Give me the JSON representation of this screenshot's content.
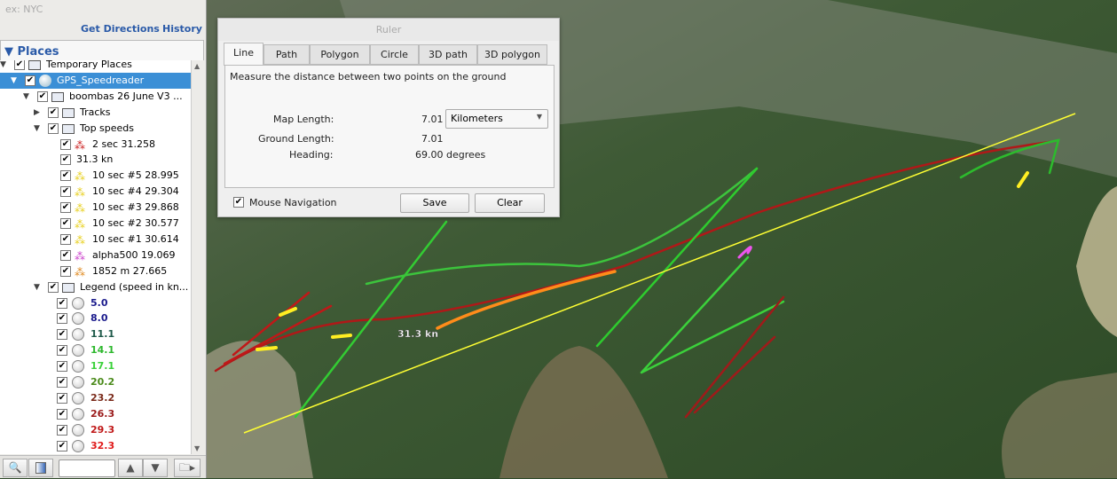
{
  "search": {
    "placeholder": "ex: NYC"
  },
  "links": {
    "directions": "Get Directions",
    "history": "History"
  },
  "places": {
    "title": "Places"
  },
  "tree": [
    {
      "label": "Temporary Places",
      "level": 0,
      "icon": "folder-open-icon",
      "twisty": "open"
    },
    {
      "label": "GPS_Speedreader",
      "level": 1,
      "icon": "globe-icon",
      "twisty": "open",
      "selected": true
    },
    {
      "label": "boombas 26 June V3 ...",
      "level": 2,
      "icon": "folder-open-icon",
      "twisty": "open"
    },
    {
      "label": "Tracks",
      "level": 3,
      "icon": "folder-icon",
      "twisty": "closed"
    },
    {
      "label": "Top speeds",
      "level": 3,
      "icon": "folder-open-icon",
      "twisty": "open"
    },
    {
      "label": "2 sec 31.258",
      "level": 4,
      "icon": "placemark-red-icon"
    },
    {
      "label": "31.3 kn",
      "level": 4,
      "icon": ""
    },
    {
      "label": "10 sec #5 28.995",
      "level": 4,
      "icon": "placemark-yellow-icon"
    },
    {
      "label": "10 sec #4 29.304",
      "level": 4,
      "icon": "placemark-yellow-icon"
    },
    {
      "label": "10 sec #3 29.868",
      "level": 4,
      "icon": "placemark-yellow-icon"
    },
    {
      "label": "10 sec #2 30.577",
      "level": 4,
      "icon": "placemark-yellow-icon"
    },
    {
      "label": "10 sec #1 30.614",
      "level": 4,
      "icon": "placemark-yellow-icon"
    },
    {
      "label": "alpha500 19.069",
      "level": 4,
      "icon": "placemark-magenta-icon"
    },
    {
      "label": "1852 m 27.665",
      "level": 4,
      "icon": "placemark-orange-icon"
    },
    {
      "label": "Legend (speed in kn...",
      "level": 3,
      "icon": "folder-open-icon",
      "twisty": "open"
    }
  ],
  "legend": [
    {
      "label": "5.0",
      "color": "#1a1a8c"
    },
    {
      "label": "8.0",
      "color": "#1a1a8c"
    },
    {
      "label": "11.1",
      "color": "#1f5a4a"
    },
    {
      "label": "14.1",
      "color": "#2eb82e"
    },
    {
      "label": "17.1",
      "color": "#3ad13a"
    },
    {
      "label": "20.2",
      "color": "#4a8a1a"
    },
    {
      "label": "23.2",
      "color": "#7a2a1a"
    },
    {
      "label": "26.3",
      "color": "#9a1a1a"
    },
    {
      "label": "29.3",
      "color": "#c01818"
    },
    {
      "label": "32.3",
      "color": "#e01a1a"
    }
  ],
  "ruler": {
    "title": "Ruler",
    "tabs": [
      "Line",
      "Path",
      "Polygon",
      "Circle",
      "3D path",
      "3D polygon"
    ],
    "active_tab": "Line",
    "description": "Measure the distance between two points on the ground",
    "map_length_label": "Map Length:",
    "map_length": "7.01",
    "unit": "Kilometers",
    "ground_length_label": "Ground Length:",
    "ground_length": "7.01",
    "heading_label": "Heading:",
    "heading": "69.00 degrees",
    "mouse_nav_label": "Mouse Navigation",
    "mouse_nav_checked": true,
    "save": "Save",
    "clear": "Clear"
  },
  "map": {
    "speed_label": "31.3 kn",
    "ruler_color": "#ffff33"
  }
}
